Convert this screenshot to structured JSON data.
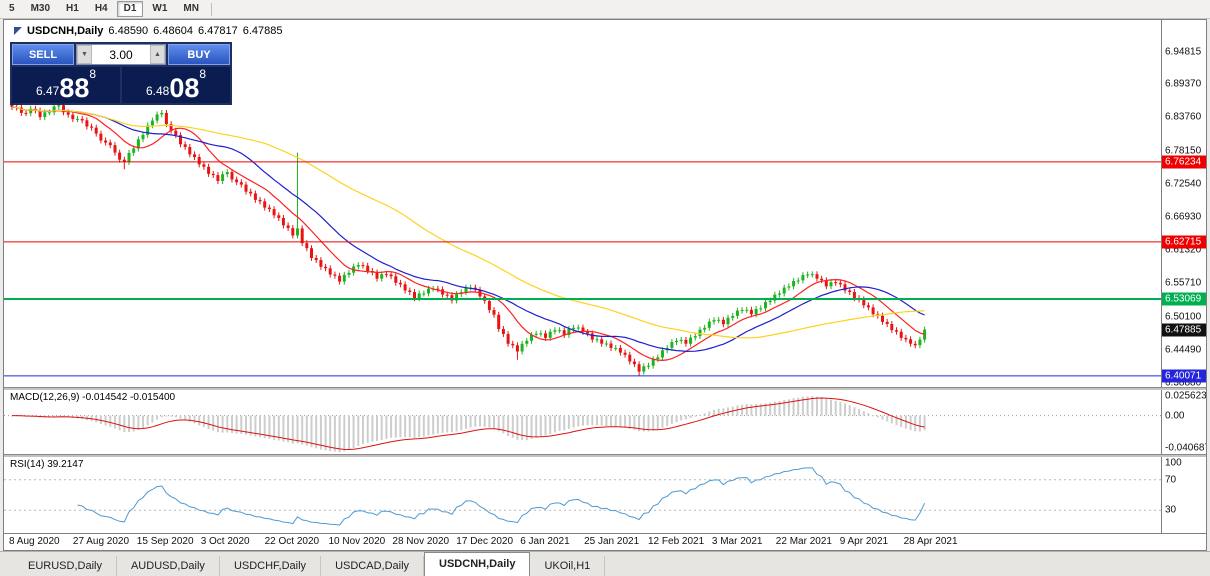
{
  "toolbar": {
    "timeframes": [
      "5",
      "M30",
      "H1",
      "H4",
      "D1",
      "W1",
      "MN"
    ],
    "active": "D1"
  },
  "chart": {
    "symbol": "USDCNH,Daily",
    "open": "6.48590",
    "high": "6.48604",
    "low": "6.47817",
    "close": "6.47885"
  },
  "trade_panel": {
    "sell_label": "SELL",
    "buy_label": "BUY",
    "volume": "3.00",
    "sell_price": {
      "small": "6.47",
      "big": "88",
      "pip": "8"
    },
    "buy_price": {
      "small": "6.48",
      "big": "08",
      "pip": "8"
    }
  },
  "palette": {
    "bull": "#1fb31f",
    "bear": "#e81414",
    "ma_fast": "#ff2020",
    "ma_mid": "#1f1fd0",
    "ma_slow": "#ffd21f",
    "macd_hist": "#cdcdcd",
    "macd_signal": "#dd1111",
    "rsi_line": "#4d9ad4",
    "level_dotted": "#b9b9b9",
    "current_price_bg": "#111111"
  },
  "price_scale": {
    "ticks": [
      "6.94815",
      "6.89370",
      "6.83760",
      "6.78150",
      "6.72540",
      "6.66930",
      "6.61320",
      "6.55710",
      "6.50100",
      "6.44490",
      "6.38880"
    ],
    "labels": [
      {
        "text": "6.76234",
        "price": 6.76234,
        "color": "#ee0000"
      },
      {
        "text": "6.62715",
        "price": 6.62715,
        "color": "#ee0000"
      },
      {
        "text": "6.53069",
        "price": 6.53069,
        "color": "#00b050"
      },
      {
        "text": "6.47885",
        "price": 6.47885,
        "color": "#111111"
      },
      {
        "text": "6.40071",
        "price": 6.40071,
        "color": "#2424dd"
      }
    ]
  },
  "hlines": [
    {
      "price": 6.76234,
      "color": "#ee0000",
      "width": 1
    },
    {
      "price": 6.62715,
      "color": "#ee0000",
      "width": 1
    },
    {
      "price": 6.53069,
      "color": "#00b050",
      "width": 2
    },
    {
      "price": 6.40071,
      "color": "#2424dd",
      "width": 1
    }
  ],
  "macd_panel": {
    "label": "MACD(12,26,9)",
    "values": "-0.014542 -0.015400",
    "scale": [
      "0.025623",
      "0.00",
      "-0.040687"
    ],
    "range": {
      "top": 0.032,
      "bottom": -0.048
    },
    "params": {
      "fast": 12,
      "slow": 26,
      "signal": 9
    }
  },
  "rsi_panel": {
    "label": "RSI(14)",
    "value": "39.2147",
    "scale": [
      "100",
      "70",
      "30"
    ],
    "levels": [
      70,
      30
    ],
    "period": 14
  },
  "tabs": {
    "items": [
      "EURUSD,Daily",
      "AUDUSD,Daily",
      "USDCHF,Daily",
      "USDCAD,Daily",
      "USDCNH,Daily",
      "UKOil,H1"
    ],
    "active": "USDCNH,Daily"
  },
  "chart_data": {
    "type": "candlestick",
    "symbol": "USDCNH",
    "timeframe": "Daily",
    "price_range": {
      "top": 7.002,
      "bottom": 6.382
    },
    "x_labels": [
      "8 Aug 2020",
      "27 Aug 2020",
      "15 Sep 2020",
      "3 Oct 2020",
      "22 Oct 2020",
      "10 Nov 2020",
      "28 Nov 2020",
      "17 Dec 2020",
      "6 Jan 2021",
      "25 Jan 2021",
      "12 Feb 2021",
      "3 Mar 2021",
      "22 Mar 2021",
      "9 Apr 2021",
      "28 Apr 2021"
    ],
    "wick_margin": 0.005,
    "special_wicks": {
      "24": {
        "low": 6.75
      },
      "61": {
        "high": 6.778
      },
      "108": {
        "low": 6.428
      },
      "134": {
        "low": 6.4008
      }
    },
    "moving_averages": [
      {
        "period": 10,
        "color": "#ff2020"
      },
      {
        "period": 21,
        "color": "#1f1fd0"
      },
      {
        "period": 55,
        "color": "#ffd21f"
      }
    ],
    "closes": [
      6.855,
      6.854,
      6.845,
      6.8445,
      6.852,
      6.849,
      6.838,
      6.846,
      6.846,
      6.856,
      6.858,
      6.846,
      6.842,
      6.8345,
      6.835,
      6.8325,
      6.822,
      6.82,
      6.81,
      6.7985,
      6.795,
      6.7905,
      6.778,
      6.766,
      6.762,
      6.7775,
      6.785,
      6.8005,
      6.808,
      6.824,
      6.832,
      6.8425,
      6.845,
      6.826,
      6.815,
      6.8075,
      6.792,
      6.7875,
      6.775,
      6.7705,
      6.758,
      6.754,
      6.742,
      6.74,
      6.73,
      6.7415,
      6.745,
      6.7325,
      6.728,
      6.724,
      6.712,
      6.709,
      6.698,
      6.6955,
      6.685,
      6.6825,
      6.672,
      6.6675,
      6.655,
      6.6505,
      6.638,
      6.65,
      6.625,
      6.6165,
      6.6,
      6.5965,
      6.585,
      6.5825,
      6.572,
      6.57,
      6.56,
      6.5715,
      6.575,
      6.5855,
      6.588,
      6.587,
      6.578,
      6.5755,
      6.565,
      6.5725,
      6.572,
      6.569,
      6.558,
      6.5555,
      6.545,
      6.5425,
      6.532,
      6.54,
      6.54,
      6.548,
      6.548,
      6.547,
      6.538,
      6.537,
      6.528,
      6.539,
      6.542,
      6.55,
      6.55,
      6.5465,
      6.535,
      6.5275,
      6.512,
      6.504,
      6.48,
      6.4715,
      6.455,
      6.4525,
      6.442,
      6.455,
      6.46,
      6.47,
      6.472,
      6.4725,
      6.465,
      6.4755,
      6.478,
      6.478,
      6.47,
      6.48,
      6.482,
      6.4825,
      6.475,
      6.4725,
      6.462,
      6.4625,
      6.455,
      6.4555,
      6.448,
      6.448,
      6.44,
      6.4365,
      6.425,
      6.4205,
      6.408,
      6.417,
      6.418,
      6.429,
      6.432,
      6.444,
      6.448,
      6.458,
      6.46,
      6.4615,
      6.455,
      6.4655,
      6.468,
      6.479,
      6.482,
      6.4925,
      6.495,
      6.4955,
      6.488,
      6.499,
      6.502,
      6.511,
      6.512,
      6.5125,
      6.505,
      6.514,
      6.515,
      6.5255,
      6.528,
      6.538,
      6.54,
      6.55,
      6.552,
      6.561,
      6.562,
      6.571,
      6.572,
      6.5725,
      6.565,
      6.5625,
      6.552,
      6.559,
      6.558,
      6.5555,
      6.545,
      6.5425,
      6.532,
      6.53,
      6.52,
      6.5165,
      6.505,
      6.5025,
      6.492,
      6.4885,
      6.478,
      6.4755,
      6.465,
      6.4625,
      6.455,
      6.4525,
      6.462,
      6.4789
    ]
  }
}
